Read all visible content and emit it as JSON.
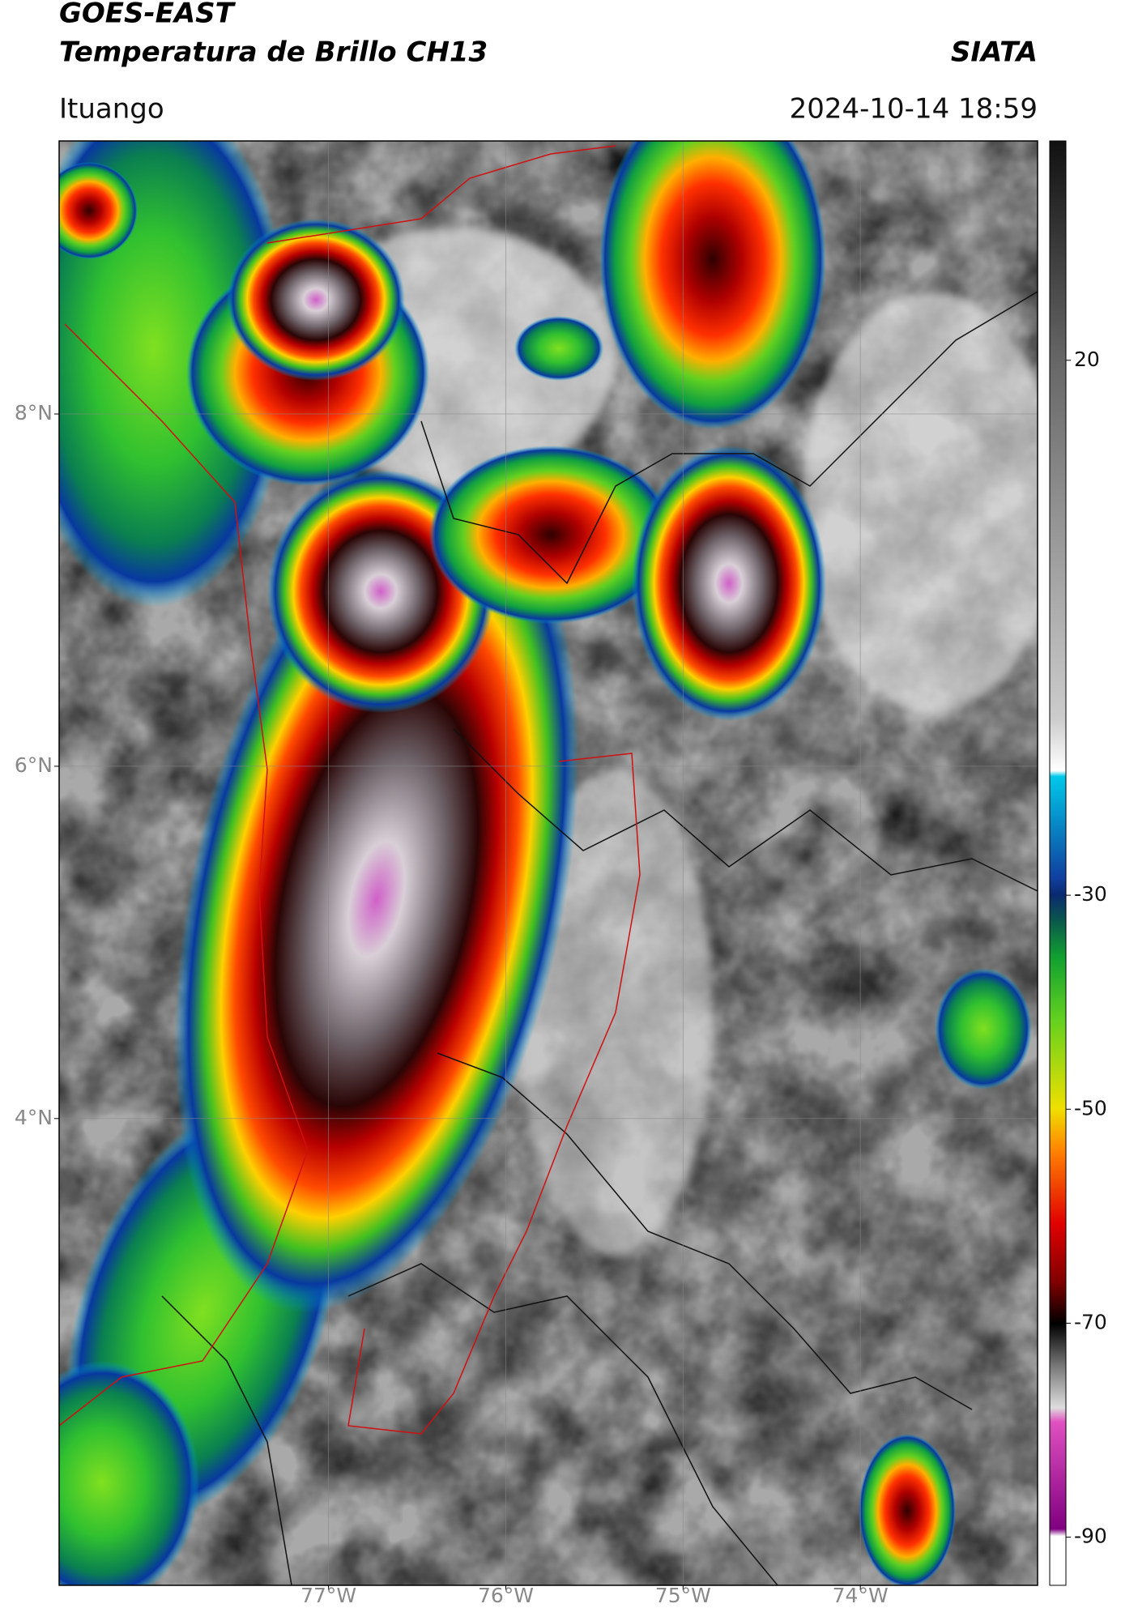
{
  "header": {
    "title": "GOES-EAST",
    "subtitle": "Temperatura de Brillo CH13",
    "source": "SIATA",
    "location": "Ituango",
    "datetime": "2024-10-14 18:59"
  },
  "map": {
    "latlim": [
      1.35,
      9.55
    ],
    "lonlim": [
      -78.52,
      -73.0
    ],
    "lat_ticks": [
      {
        "value": 8,
        "label": "8°N"
      },
      {
        "value": 6,
        "label": "6°N"
      },
      {
        "value": 4,
        "label": "4°N"
      }
    ],
    "lon_ticks": [
      {
        "value": -77,
        "label": "77°W"
      },
      {
        "value": -76,
        "label": "76°W"
      },
      {
        "value": -75,
        "label": "75°W"
      },
      {
        "value": -74,
        "label": "74°W"
      }
    ],
    "grid": true
  },
  "colorbar": {
    "lim": [
      -94.5,
      40.5
    ],
    "ticks": [
      20,
      -30,
      -50,
      -70,
      -90
    ]
  }
}
